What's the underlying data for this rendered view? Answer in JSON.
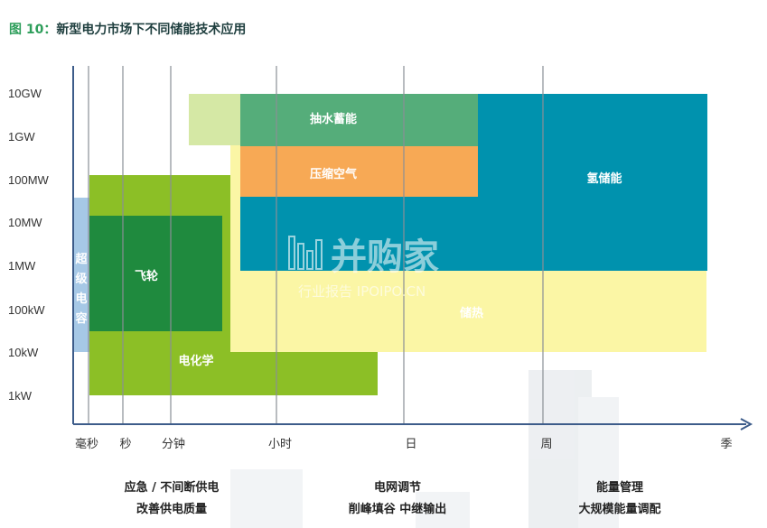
{
  "figure": {
    "label": "图 10：",
    "title": "新型电力市场下不同储能技术应用"
  },
  "y_axis": {
    "ticks": [
      "10GW",
      "1GW",
      "100MW",
      "10MW",
      "1MW",
      "100kW",
      "10kW",
      "1kW"
    ]
  },
  "x_axis": {
    "ticks": [
      "毫秒",
      "秒",
      "分钟",
      "小时",
      "日",
      "周",
      "季"
    ]
  },
  "technologies": {
    "supercap": [
      "超",
      "级",
      "电",
      "容"
    ],
    "flywheel": "飞轮",
    "electrochemical": "电化学",
    "pumped_hydro": "抽水蓄能",
    "compressed_air": "压缩空气",
    "hydrogen": "氢储能",
    "thermal": "储热"
  },
  "applications": {
    "group1": [
      "应急 / 不间断供电",
      "改善供电质量"
    ],
    "group2": [
      "电网调节",
      "削峰填谷 中继输出"
    ],
    "group3": [
      "能量管理",
      "大规模能量调配"
    ]
  },
  "watermark": {
    "main": "并购家",
    "sub": "行业报告 IPOIPO.CN"
  },
  "colors": {
    "supercap": "#a6c8e6",
    "flywheel": "#1f8a3e",
    "electrochemical": "#8cbf26",
    "pumped_hydro": "#55ad7a",
    "compressed_air": "#f7a955",
    "hydrogen": "#0092ae",
    "thermal": "#fbf6a5",
    "light_green": "#d5e8a5",
    "axis": "#3d5c8a"
  }
}
